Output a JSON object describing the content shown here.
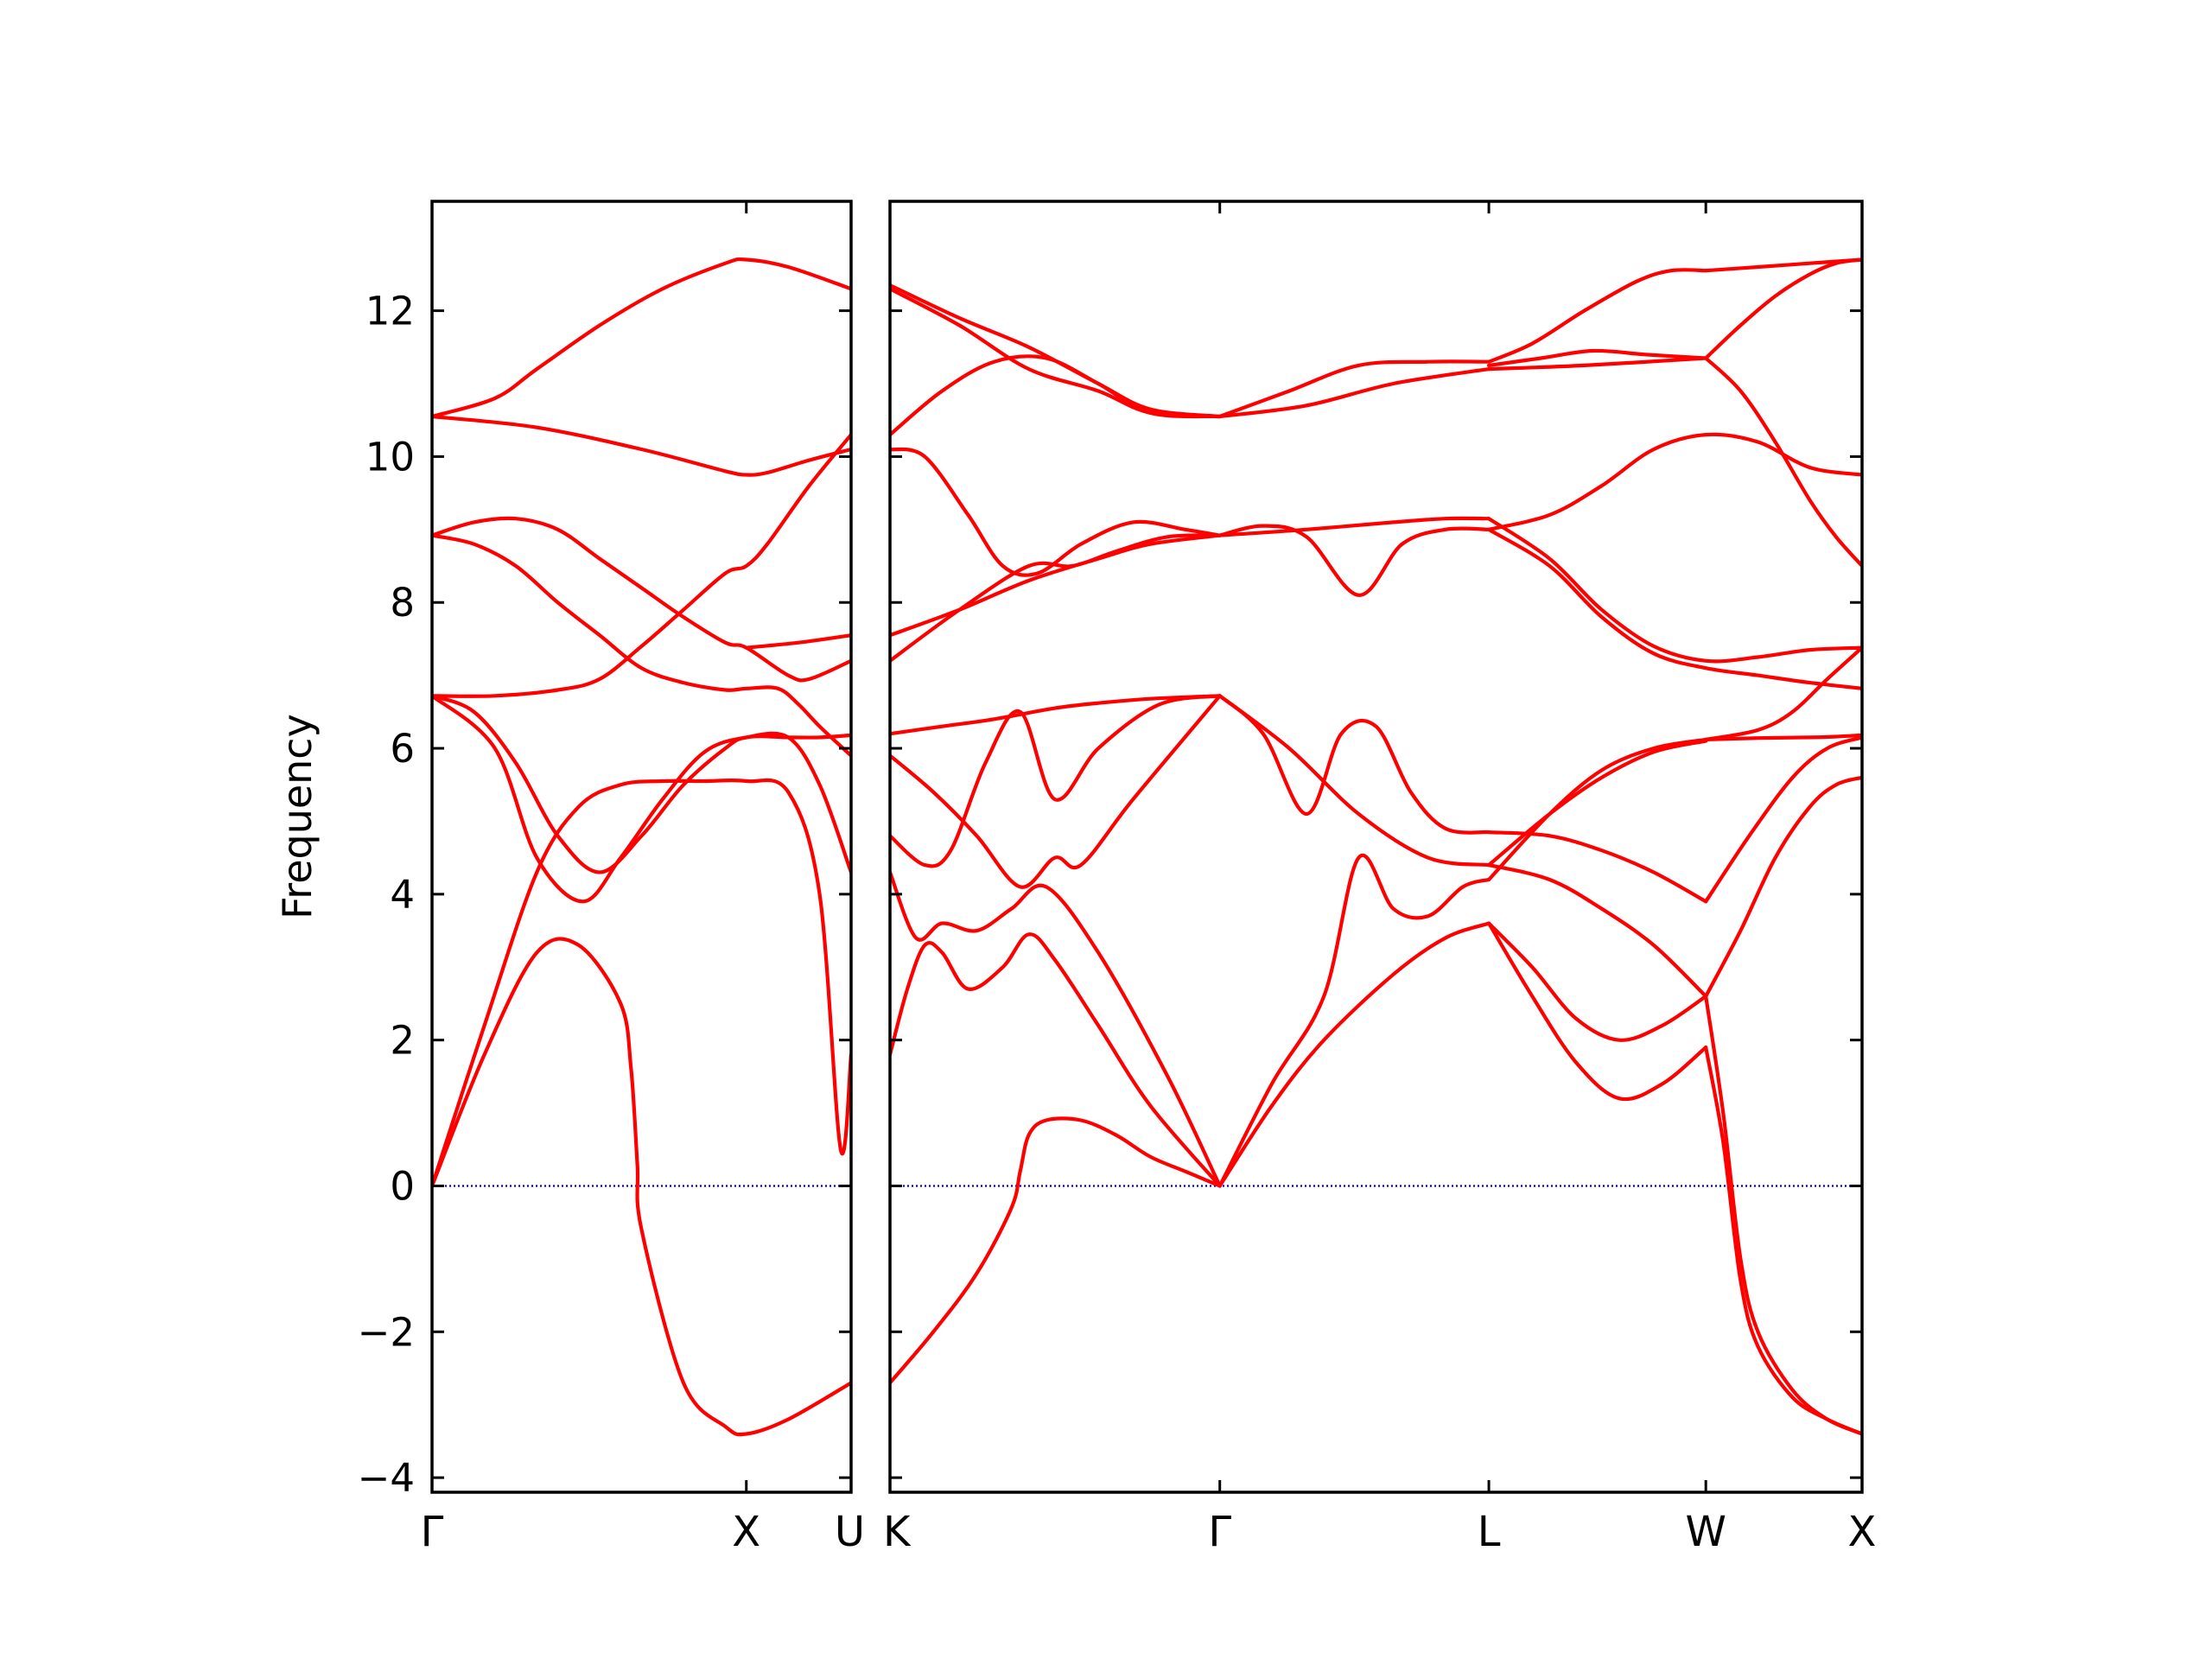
{
  "chart_data": {
    "type": "line",
    "ylabel": "Frequency",
    "ylim": [
      -4.2,
      13.5
    ],
    "yticks": [
      -4,
      -2,
      0,
      2,
      4,
      6,
      8,
      10,
      12
    ],
    "ytick_labels": [
      "−4",
      "−2",
      "0",
      "2",
      "4",
      "6",
      "8",
      "10",
      "12"
    ],
    "grid": false,
    "line_color": "#ff0000",
    "zero_line_color": "#0000cc",
    "panels": [
      {
        "name": "panel-gamma-x-u",
        "xlim": [
          0,
          2
        ],
        "xticks": [
          0,
          1.5,
          2
        ],
        "xtick_labels": [
          "Γ",
          "X",
          "U"
        ],
        "series": [
          {
            "x": [
              0,
              0.25,
              0.5,
              0.7,
              0.9,
              0.95,
              0.98,
              1.0,
              1.2,
              1.4,
              1.5,
              1.7,
              2.0
            ],
            "y": [
              0,
              1.8,
              3.2,
              3.3,
              2.5,
              1.6,
              0.3,
              -0.6,
              -2.7,
              -3.3,
              -3.4,
              -3.2,
              -2.7
            ]
          },
          {
            "x": [
              0,
              0.25,
              0.5,
              0.7,
              0.9,
              1.1,
              1.3,
              1.5,
              1.7,
              1.85,
              1.95,
              2.0
            ],
            "y": [
              0,
              2.2,
              4.3,
              5.2,
              5.5,
              5.55,
              5.55,
              5.55,
              5.4,
              4.0,
              0.5,
              1.8
            ]
          },
          {
            "x": [
              0,
              0.3,
              0.5,
              0.72,
              0.9,
              1.1,
              1.3,
              1.5,
              1.7,
              1.85,
              2.0
            ],
            "y": [
              6.72,
              6.0,
              4.5,
              3.9,
              4.5,
              5.3,
              5.95,
              6.15,
              6.15,
              6.15,
              6.18
            ]
          },
          {
            "x": [
              0,
              0.2,
              0.4,
              0.6,
              0.8,
              1.0,
              1.2,
              1.4,
              1.5,
              1.7,
              1.85,
              2.0
            ],
            "y": [
              6.72,
              6.5,
              5.8,
              4.8,
              4.3,
              4.8,
              5.5,
              6.0,
              6.15,
              6.15,
              5.5,
              4.3
            ]
          },
          {
            "x": [
              0,
              0.3,
              0.6,
              0.8,
              1.0,
              1.2,
              1.4,
              1.5,
              1.6,
              1.8,
              2.0
            ],
            "y": [
              6.72,
              6.72,
              6.8,
              6.95,
              7.4,
              7.9,
              8.4,
              8.5,
              8.8,
              9.6,
              10.3
            ]
          },
          {
            "x": [
              0,
              0.2,
              0.4,
              0.6,
              0.8,
              1.0,
              1.2,
              1.4,
              1.5,
              1.65,
              1.75,
              1.85,
              2.0
            ],
            "y": [
              8.92,
              8.8,
              8.5,
              8.0,
              7.55,
              7.1,
              6.9,
              6.8,
              6.82,
              6.82,
              6.6,
              6.3,
              5.9
            ]
          },
          {
            "x": [
              0,
              0.2,
              0.4,
              0.6,
              0.8,
              1.0,
              1.2,
              1.4,
              1.5,
              1.7,
              1.8,
              2.0
            ],
            "y": [
              8.92,
              9.1,
              9.15,
              9.0,
              8.6,
              8.2,
              7.8,
              7.45,
              7.38,
              7.0,
              6.95,
              7.2
            ]
          },
          {
            "x": [
              0,
              0.5,
              1.0,
              1.4,
              1.5,
              1.6,
              1.8,
              2.0
            ],
            "y": [
              10.55,
              10.4,
              10.1,
              9.8,
              9.75,
              9.78,
              9.95,
              10.1
            ]
          },
          {
            "x": [
              0,
              0.3,
              0.5,
              0.8,
              1.1,
              1.4,
              1.5,
              1.7,
              2.0
            ],
            "y": [
              10.55,
              10.8,
              11.2,
              11.8,
              12.3,
              12.65,
              12.7,
              12.6,
              12.3
            ]
          },
          {
            "x": [
              1.5,
              1.75,
              2.0
            ],
            "y": [
              7.38,
              7.45,
              7.55
            ]
          }
        ]
      },
      {
        "name": "panel-k-gamma-l-w-x",
        "xlim": [
          0,
          5.6
        ],
        "xticks": [
          0,
          1.9,
          3.45,
          4.7,
          5.6
        ],
        "xtick_labels": [
          "K",
          "Γ",
          "L",
          "W",
          "X"
        ],
        "series": [
          {
            "x": [
              0,
              0.25,
              0.5,
              0.7,
              0.75,
              0.8,
              0.9,
              1.1,
              1.3,
              1.5,
              1.7,
              1.9
            ],
            "y": [
              -2.7,
              -2.0,
              -1.2,
              -0.3,
              0.2,
              0.7,
              0.9,
              0.9,
              0.7,
              0.4,
              0.2,
              0.0
            ]
          },
          {
            "x": [
              0,
              0.1,
              0.2,
              0.3,
              0.45,
              0.65,
              0.8,
              0.95,
              1.2,
              1.5,
              1.9
            ],
            "y": [
              1.8,
              2.7,
              3.3,
              3.2,
              2.7,
              3.0,
              3.45,
              3.1,
              2.2,
              1.1,
              0.0
            ]
          },
          {
            "x": [
              0,
              0.15,
              0.3,
              0.5,
              0.7,
              0.9,
              1.2,
              1.6,
              1.9
            ],
            "y": [
              4.3,
              3.4,
              3.6,
              3.5,
              3.8,
              4.1,
              3.2,
              1.5,
              0.0
            ]
          },
          {
            "x": [
              0,
              0.2,
              0.35,
              0.55,
              0.75,
              0.95,
              1.2,
              1.55,
              1.9
            ],
            "y": [
              4.8,
              4.4,
              4.6,
              5.8,
              6.5,
              5.3,
              6.0,
              6.6,
              6.72
            ]
          },
          {
            "x": [
              0,
              0.3,
              0.6,
              0.95,
              1.2,
              1.5,
              1.9
            ],
            "y": [
              6.2,
              6.3,
              6.4,
              6.55,
              6.62,
              6.68,
              6.72
            ]
          },
          {
            "x": [
              0,
              0.25,
              0.5,
              0.75,
              0.95,
              1.1,
              1.4,
              1.9
            ],
            "y": [
              5.9,
              5.4,
              4.8,
              4.1,
              4.5,
              4.4,
              5.3,
              6.72
            ]
          },
          {
            "x": [
              1.9,
              2.2,
              2.5,
              2.7,
              2.9,
              3.1,
              3.3,
              3.45
            ],
            "y": [
              0.0,
              1.4,
              2.6,
              4.5,
              3.8,
              3.7,
              4.1,
              4.2
            ]
          },
          {
            "x": [
              1.9,
              2.2,
              2.5,
              2.9,
              3.2,
              3.45
            ],
            "y": [
              0.0,
              1.1,
              2.0,
              2.9,
              3.4,
              3.6
            ]
          },
          {
            "x": [
              1.9,
              2.15,
              2.4,
              2.6,
              2.8,
              3.0,
              3.2,
              3.45
            ],
            "y": [
              6.72,
              6.2,
              5.1,
              6.2,
              6.3,
              5.4,
              4.9,
              4.85
            ]
          },
          {
            "x": [
              1.9,
              2.3,
              2.7,
              3.1,
              3.45
            ],
            "y": [
              6.72,
              6.0,
              5.1,
              4.5,
              4.4
            ]
          },
          {
            "x": [
              3.45,
              3.7,
              3.95,
              4.2,
              4.45,
              4.7
            ],
            "y": [
              3.6,
              2.6,
              1.7,
              1.2,
              1.4,
              1.9
            ]
          },
          {
            "x": [
              3.45,
              3.7,
              3.95,
              4.2,
              4.45,
              4.7
            ],
            "y": [
              3.6,
              3.0,
              2.3,
              2.0,
              2.2,
              2.6
            ]
          },
          {
            "x": [
              3.45,
              3.8,
              4.1,
              4.4,
              4.7
            ],
            "y": [
              4.4,
              4.2,
              3.8,
              3.3,
              2.6
            ]
          },
          {
            "x": [
              3.45,
              3.8,
              4.1,
              4.4,
              4.7
            ],
            "y": [
              4.85,
              4.8,
              4.6,
              4.3,
              3.9
            ]
          },
          {
            "x": [
              3.45,
              3.8,
              4.1,
              4.4,
              4.7
            ],
            "y": [
              4.4,
              5.1,
              5.6,
              5.95,
              6.1
            ]
          },
          {
            "x": [
              3.45,
              3.8,
              4.1,
              4.4,
              4.7
            ],
            "y": [
              4.2,
              5.1,
              5.7,
              6.0,
              6.12
            ]
          },
          {
            "x": [
              4.7,
              4.8,
              4.9,
              5.0,
              5.2,
              5.4,
              5.6
            ],
            "y": [
              1.9,
              0.6,
              -1.3,
              -2.2,
              -2.9,
              -3.2,
              -3.4
            ]
          },
          {
            "x": [
              4.7,
              4.8,
              4.9,
              5.0,
              5.2,
              5.4,
              5.6
            ],
            "y": [
              2.6,
              1.0,
              -1.0,
              -2.0,
              -2.8,
              -3.2,
              -3.4
            ]
          },
          {
            "x": [
              4.7,
              4.9,
              5.1,
              5.3,
              5.45,
              5.6
            ],
            "y": [
              2.6,
              3.5,
              4.5,
              5.2,
              5.5,
              5.6
            ]
          },
          {
            "x": [
              4.7,
              4.95,
              5.2,
              5.4,
              5.6
            ],
            "y": [
              3.9,
              4.8,
              5.6,
              6.0,
              6.15
            ]
          },
          {
            "x": [
              4.7,
              5.0,
              5.3,
              5.45,
              5.6
            ],
            "y": [
              6.12,
              6.14,
              6.15,
              6.16,
              6.18
            ]
          },
          {
            "x": [
              4.7,
              5.0,
              5.2,
              5.4,
              5.6
            ],
            "y": [
              6.12,
              6.25,
              6.5,
              6.95,
              7.38
            ]
          },
          {
            "x": [
              0,
              0.4,
              0.8,
              1.05,
              1.3,
              1.6,
              1.9
            ],
            "y": [
              7.2,
              7.9,
              8.5,
              8.5,
              8.7,
              8.9,
              8.92
            ]
          },
          {
            "x": [
              0,
              0.4,
              0.8,
              1.2,
              1.5,
              1.9
            ],
            "y": [
              7.55,
              7.9,
              8.3,
              8.6,
              8.8,
              8.92
            ]
          },
          {
            "x": [
              0,
              0.2,
              0.45,
              0.65,
              0.85,
              1.1,
              1.4,
              1.7,
              1.9
            ],
            "y": [
              10.1,
              10.0,
              9.2,
              8.5,
              8.4,
              8.8,
              9.1,
              9.0,
              8.92
            ]
          },
          {
            "x": [
              1.9,
              2.15,
              2.4,
              2.7,
              2.95,
              3.2,
              3.45
            ],
            "y": [
              8.92,
              9.05,
              8.9,
              8.1,
              8.8,
              9.0,
              9.0
            ]
          },
          {
            "x": [
              1.9,
              2.4,
              2.9,
              3.2,
              3.45
            ],
            "y": [
              8.92,
              9.0,
              9.1,
              9.15,
              9.15
            ]
          },
          {
            "x": [
              3.45,
              3.8,
              4.1,
              4.4,
              4.7,
              5.0,
              5.3,
              5.6
            ],
            "y": [
              9.0,
              8.5,
              7.8,
              7.3,
              7.1,
              7.0,
              6.9,
              6.82
            ]
          },
          {
            "x": [
              3.45,
              3.8,
              4.1,
              4.4,
              4.7,
              5.0,
              5.3,
              5.6
            ],
            "y": [
              9.15,
              8.6,
              7.9,
              7.4,
              7.2,
              7.25,
              7.35,
              7.38
            ]
          },
          {
            "x": [
              3.45,
              3.8,
              4.1,
              4.4,
              4.7,
              5.0,
              5.3,
              5.6
            ],
            "y": [
              9.0,
              9.2,
              9.6,
              10.1,
              10.3,
              10.2,
              9.85,
              9.75
            ]
          },
          {
            "x": [
              4.7,
              4.9,
              5.1,
              5.3,
              5.45,
              5.6
            ],
            "y": [
              11.35,
              10.9,
              10.2,
              9.4,
              8.9,
              8.5
            ]
          },
          {
            "x": [
              0,
              0.3,
              0.6,
              0.9,
              1.2,
              1.5,
              1.9
            ],
            "y": [
              10.3,
              10.9,
              11.3,
              11.35,
              11.0,
              10.6,
              10.55
            ]
          },
          {
            "x": [
              0,
              0.4,
              0.8,
              1.2,
              1.5,
              1.9
            ],
            "y": [
              12.3,
              11.8,
              11.2,
              10.9,
              10.6,
              10.55
            ]
          },
          {
            "x": [
              0,
              0.4,
              0.8,
              1.2,
              1.5,
              1.9
            ],
            "y": [
              12.35,
              11.9,
              11.5,
              11.0,
              10.65,
              10.55
            ]
          },
          {
            "x": [
              1.9,
              2.3,
              2.7,
              3.1,
              3.45
            ],
            "y": [
              10.55,
              10.9,
              11.25,
              11.3,
              11.3
            ]
          },
          {
            "x": [
              1.9,
              2.4,
              2.9,
              3.45
            ],
            "y": [
              10.55,
              10.7,
              11.0,
              11.2
            ]
          },
          {
            "x": [
              3.45,
              3.7,
              4.0,
              4.3,
              4.5,
              4.7
            ],
            "y": [
              11.3,
              11.55,
              12.0,
              12.4,
              12.55,
              12.55
            ]
          },
          {
            "x": [
              3.45,
              3.75,
              4.05,
              4.35,
              4.7
            ],
            "y": [
              11.25,
              11.35,
              11.45,
              11.4,
              11.35
            ]
          },
          {
            "x": [
              3.45,
              4.0,
              4.7
            ],
            "y": [
              11.2,
              11.25,
              11.35
            ]
          },
          {
            "x": [
              4.7,
              5.0,
              5.3,
              5.6
            ],
            "y": [
              12.55,
              12.6,
              12.65,
              12.7
            ]
          },
          {
            "x": [
              4.7,
              4.9,
              5.1,
              5.3,
              5.45,
              5.6
            ],
            "y": [
              11.35,
              11.8,
              12.2,
              12.5,
              12.65,
              12.7
            ]
          }
        ]
      }
    ]
  }
}
